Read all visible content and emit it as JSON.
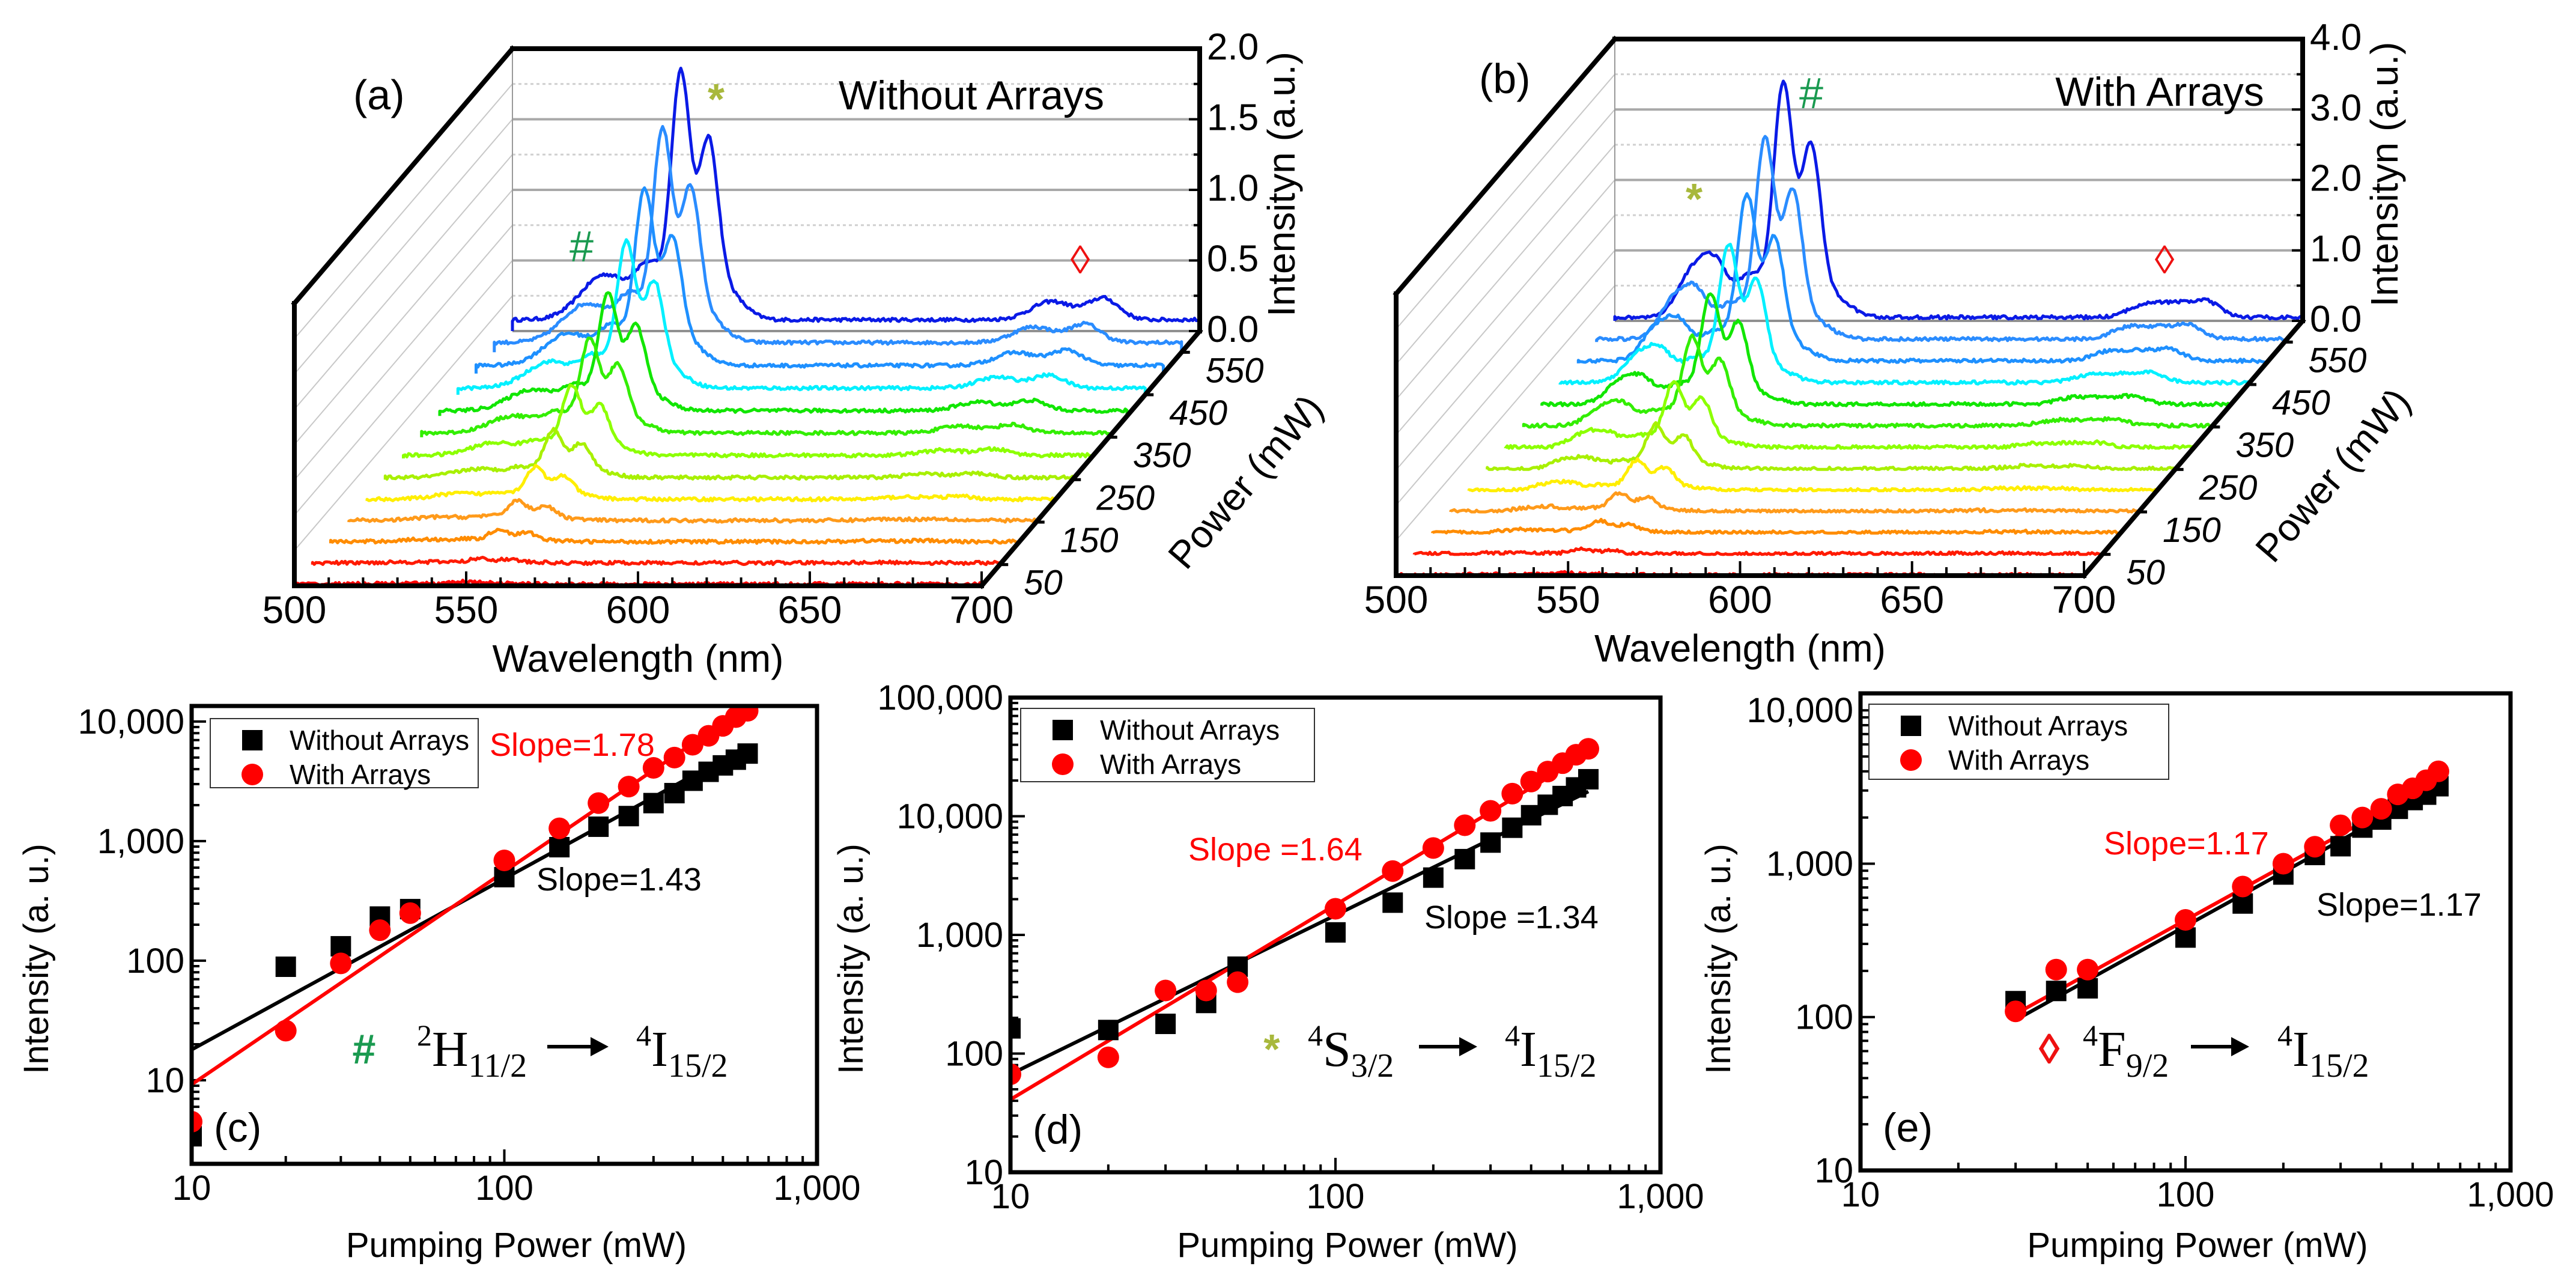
{
  "chart_data": [
    {
      "panel": "(a)",
      "type": "line",
      "subtype": "3d-waterfall",
      "title": "Without Arrays",
      "xlabel": "Wavelength (nm)",
      "xlim": [
        500,
        700
      ],
      "xticks": [
        "500",
        "550",
        "600",
        "650",
        "700"
      ],
      "zlabel": "Intensityn (a.u.)",
      "zlim": [
        0,
        2.0
      ],
      "zticks": [
        "0.0",
        "0.5",
        "1.0",
        "1.5",
        "2.0"
      ],
      "depth_label": "Power (mW)",
      "depth_range": [
        0,
        600
      ],
      "depth_ticks": [
        "50",
        "150",
        "250",
        "350",
        "450",
        "550"
      ],
      "grid": true,
      "series_colors": [
        "#ff0000",
        "#ff1a00",
        "#ff8c00",
        "#ff9a1a",
        "#ffee00",
        "#a8f000",
        "#8cff00",
        "#33ee00",
        "#11e600",
        "#00f0ff",
        "#1e90ff",
        "#2a8cff",
        "#0a1ae6"
      ],
      "series_relative_scale": [
        0.01,
        0.02,
        0.05,
        0.08,
        0.13,
        0.19,
        0.28,
        0.38,
        0.47,
        0.59,
        0.71,
        0.86,
        1.0
      ],
      "highest_power_spectrum": {
        "baseline": 0.08,
        "peaks": [
          {
            "wavelength": 527,
            "intensity": 0.32,
            "width_nm": 7
          },
          {
            "wavelength": 540,
            "intensity": 0.35,
            "width_nm": 4
          },
          {
            "wavelength": 549,
            "intensity": 1.72,
            "width_nm": 2.8
          },
          {
            "wavelength": 557,
            "intensity": 1.15,
            "width_nm": 2.8
          },
          {
            "wavelength": 562,
            "intensity": 0.2,
            "width_nm": 5
          },
          {
            "wavelength": 657,
            "intensity": 0.13,
            "width_nm": 6
          },
          {
            "wavelength": 672,
            "intensity": 0.15,
            "width_nm": 4.5
          }
        ]
      },
      "markers": [
        {
          "symbol": "#",
          "color": "#1a9a50"
        },
        {
          "symbol": "*",
          "color": "#a8b83c"
        },
        {
          "symbol": "◊",
          "color": "#ee1111"
        }
      ]
    },
    {
      "panel": "(b)",
      "type": "line",
      "subtype": "3d-waterfall",
      "title": "With Arrays",
      "xlabel": "Wavelength (nm)",
      "xlim": [
        500,
        700
      ],
      "xticks": [
        "500",
        "550",
        "600",
        "650",
        "700"
      ],
      "zlabel": "Intensityn (a.u.)",
      "zlim": [
        0,
        4.0
      ],
      "zticks": [
        "0.0",
        "1.0",
        "2.0",
        "3.0",
        "4.0"
      ],
      "depth_label": "Power (mW)",
      "depth_range": [
        0,
        600
      ],
      "depth_ticks": [
        "50",
        "150",
        "250",
        "350",
        "450",
        "550"
      ],
      "grid": true,
      "series_colors": [
        "#ff0000",
        "#ff1a00",
        "#ff8c00",
        "#ff9a1a",
        "#ffee00",
        "#a8f000",
        "#8cff00",
        "#33ee00",
        "#11e600",
        "#00f0ff",
        "#1e90ff",
        "#2a8cff",
        "#0a1ae6"
      ],
      "series_relative_scale": [
        0.01,
        0.02,
        0.05,
        0.08,
        0.13,
        0.19,
        0.28,
        0.38,
        0.47,
        0.59,
        0.71,
        0.86,
        1.0
      ],
      "highest_power_spectrum": {
        "baseline": 0.05,
        "peaks": [
          {
            "wavelength": 522,
            "intensity": 0.55,
            "width_nm": 4
          },
          {
            "wavelength": 529,
            "intensity": 0.75,
            "width_nm": 4
          },
          {
            "wavelength": 540,
            "intensity": 0.6,
            "width_nm": 4
          },
          {
            "wavelength": 549,
            "intensity": 3.25,
            "width_nm": 2.8
          },
          {
            "wavelength": 557,
            "intensity": 2.3,
            "width_nm": 2.8
          },
          {
            "wavelength": 563,
            "intensity": 0.3,
            "width_nm": 5
          },
          {
            "wavelength": 655,
            "intensity": 0.2,
            "width_nm": 5
          },
          {
            "wavelength": 664,
            "intensity": 0.15,
            "width_nm": 4
          },
          {
            "wavelength": 672,
            "intensity": 0.22,
            "width_nm": 4
          }
        ]
      },
      "markers": [
        {
          "symbol": "#",
          "color": "#1a9a50"
        },
        {
          "symbol": "*",
          "color": "#a8b83c"
        },
        {
          "symbol": "◊",
          "color": "#ee1111"
        }
      ]
    },
    {
      "panel": "(c)",
      "type": "scatter",
      "xlabel": "Pumping Power (mW)",
      "ylabel": "Intensity (a. u.)",
      "xscale": "log",
      "yscale": "log",
      "xlim": [
        10,
        1000
      ],
      "ylim": [
        2,
        13500
      ],
      "xticks": [
        {
          "v": 10,
          "label": "10"
        },
        {
          "v": 100,
          "label": "100"
        },
        {
          "v": 1000,
          "label": "1,000"
        }
      ],
      "yticks": [
        {
          "v": 10,
          "label": "10"
        },
        {
          "v": 100,
          "label": "100"
        },
        {
          "v": 1000,
          "label": "1,000"
        },
        {
          "v": 10000,
          "label": "10,000"
        }
      ],
      "legend_placement": "top-left",
      "x": [
        10,
        20,
        30,
        40,
        50,
        100,
        150,
        200,
        250,
        300,
        350,
        400,
        450,
        500,
        550,
        600
      ],
      "series": [
        {
          "name": "Without Arrays",
          "marker": "square",
          "color": "#000000",
          "values": [
            3.4,
            89,
            132,
            234,
            270,
            500,
            890,
            1320,
            1620,
            2080,
            2520,
            3200,
            3800,
            4300,
            4800,
            5400
          ],
          "fit": {
            "slope": 1.43,
            "coefficient": 0.67,
            "x_range": [
              10,
              600
            ],
            "label": "Slope=1.43"
          }
        },
        {
          "name": "With Arrays",
          "marker": "circle",
          "color": "#ff0000",
          "values": [
            4.5,
            26,
            95,
            180,
            250,
            690,
            1280,
            2080,
            2860,
            4100,
            5000,
            6400,
            7600,
            9200,
            10900,
            12300
          ],
          "fit": {
            "slope": 1.78,
            "coefficient": 0.153,
            "x_range": [
              10,
              620
            ],
            "label": "Slope=1.78"
          }
        }
      ],
      "transition": {
        "marker": "#",
        "marker_color": "#1a9a50",
        "from": {
          "sup": "2",
          "term": "H",
          "sub": "11/2"
        },
        "to": {
          "sup": "4",
          "term": "I",
          "sub": "15/2"
        }
      }
    },
    {
      "panel": "(d)",
      "type": "scatter",
      "xlabel": "Pumping Power (mW)",
      "ylabel": "Intensity (a. u.)",
      "xscale": "log",
      "yscale": "log",
      "xlim": [
        10,
        1000
      ],
      "ylim": [
        10,
        100000
      ],
      "xticks": [
        {
          "v": 10,
          "label": "10"
        },
        {
          "v": 100,
          "label": "100"
        },
        {
          "v": 1000,
          "label": "1,000"
        }
      ],
      "yticks": [
        {
          "v": 10,
          "label": "10"
        },
        {
          "v": 100,
          "label": "100"
        },
        {
          "v": 1000,
          "label": "1,000"
        },
        {
          "v": 10000,
          "label": "10,000"
        },
        {
          "v": 100000,
          "label": "100,000"
        }
      ],
      "legend_placement": "top-left",
      "x": [
        10,
        20,
        30,
        40,
        50,
        100,
        150,
        200,
        250,
        300,
        350,
        400,
        450,
        500,
        550,
        600
      ],
      "series": [
        {
          "name": "Without Arrays",
          "marker": "square",
          "color": "#000000",
          "values": [
            163,
            158,
            178,
            267,
            540,
            1050,
            1870,
            3040,
            4350,
            6000,
            8000,
            10200,
            12500,
            14800,
            17500,
            20500
          ],
          "fit": {
            "slope": 1.34,
            "coefficient": 3.06,
            "x_range": [
              10,
              600
            ],
            "label": "Slope =1.34"
          }
        },
        {
          "name": "With Arrays",
          "marker": "circle",
          "color": "#ff0000",
          "values": [
            67,
            93,
            340,
            340,
            400,
            1660,
            3450,
            5400,
            8400,
            11100,
            15500,
            19600,
            23800,
            28000,
            33000,
            37000
          ],
          "fit": {
            "slope": 1.64,
            "coefficient": 0.94,
            "x_range": [
              10,
              600
            ],
            "label": "Slope =1.64"
          }
        }
      ],
      "transition": {
        "marker": "*",
        "marker_color": "#a8b83c",
        "from": {
          "sup": "4",
          "term": "S",
          "sub": "3/2"
        },
        "to": {
          "sup": "4",
          "term": "I",
          "sub": "15/2"
        }
      }
    },
    {
      "panel": "(e)",
      "type": "scatter",
      "xlabel": "Pumping Power (mW)",
      "ylabel": "Intensity (a. u.)",
      "xscale": "log",
      "yscale": "log",
      "xlim": [
        10,
        1000
      ],
      "ylim": [
        10,
        12900
      ],
      "xticks": [
        {
          "v": 10,
          "label": "10"
        },
        {
          "v": 100,
          "label": "100"
        },
        {
          "v": 1000,
          "label": "1,000"
        }
      ],
      "yticks": [
        {
          "v": 10,
          "label": "10"
        },
        {
          "v": 100,
          "label": "100"
        },
        {
          "v": 1000,
          "label": "1,000"
        },
        {
          "v": 10000,
          "label": "10,000"
        }
      ],
      "legend_placement": "top-left",
      "x": [
        30,
        40,
        50,
        100,
        150,
        200,
        250,
        300,
        350,
        400,
        450,
        500,
        550,
        600
      ],
      "series": [
        {
          "name": "Without Arrays",
          "marker": "square",
          "color": "#000000",
          "values": [
            127,
            148,
            154,
            330,
            550,
            850,
            1140,
            1300,
            1720,
            1940,
            2280,
            2600,
            2820,
            3200
          ],
          "fit": {
            "slope": 1.17,
            "coefficient": 1.79,
            "x_range": [
              30,
              600
            ],
            "label": "Slope=1.17"
          }
        },
        {
          "name": "With Arrays",
          "marker": "circle",
          "color": "#ff0000",
          "values": [
            109,
            204,
            204,
            430,
            710,
            1000,
            1290,
            1780,
            2000,
            2280,
            2830,
            3100,
            3500,
            4000
          ],
          "fit": {
            "slope": 1.17,
            "coefficient": 1.96,
            "x_range": [
              30,
              600
            ],
            "label": "Slope=1.17"
          }
        }
      ],
      "transition": {
        "marker": "◊",
        "marker_color": "#ee1111",
        "from": {
          "sup": "4",
          "term": "F",
          "sub": "9/2"
        },
        "to": {
          "sup": "4",
          "term": "I",
          "sub": "15/2"
        }
      }
    }
  ]
}
